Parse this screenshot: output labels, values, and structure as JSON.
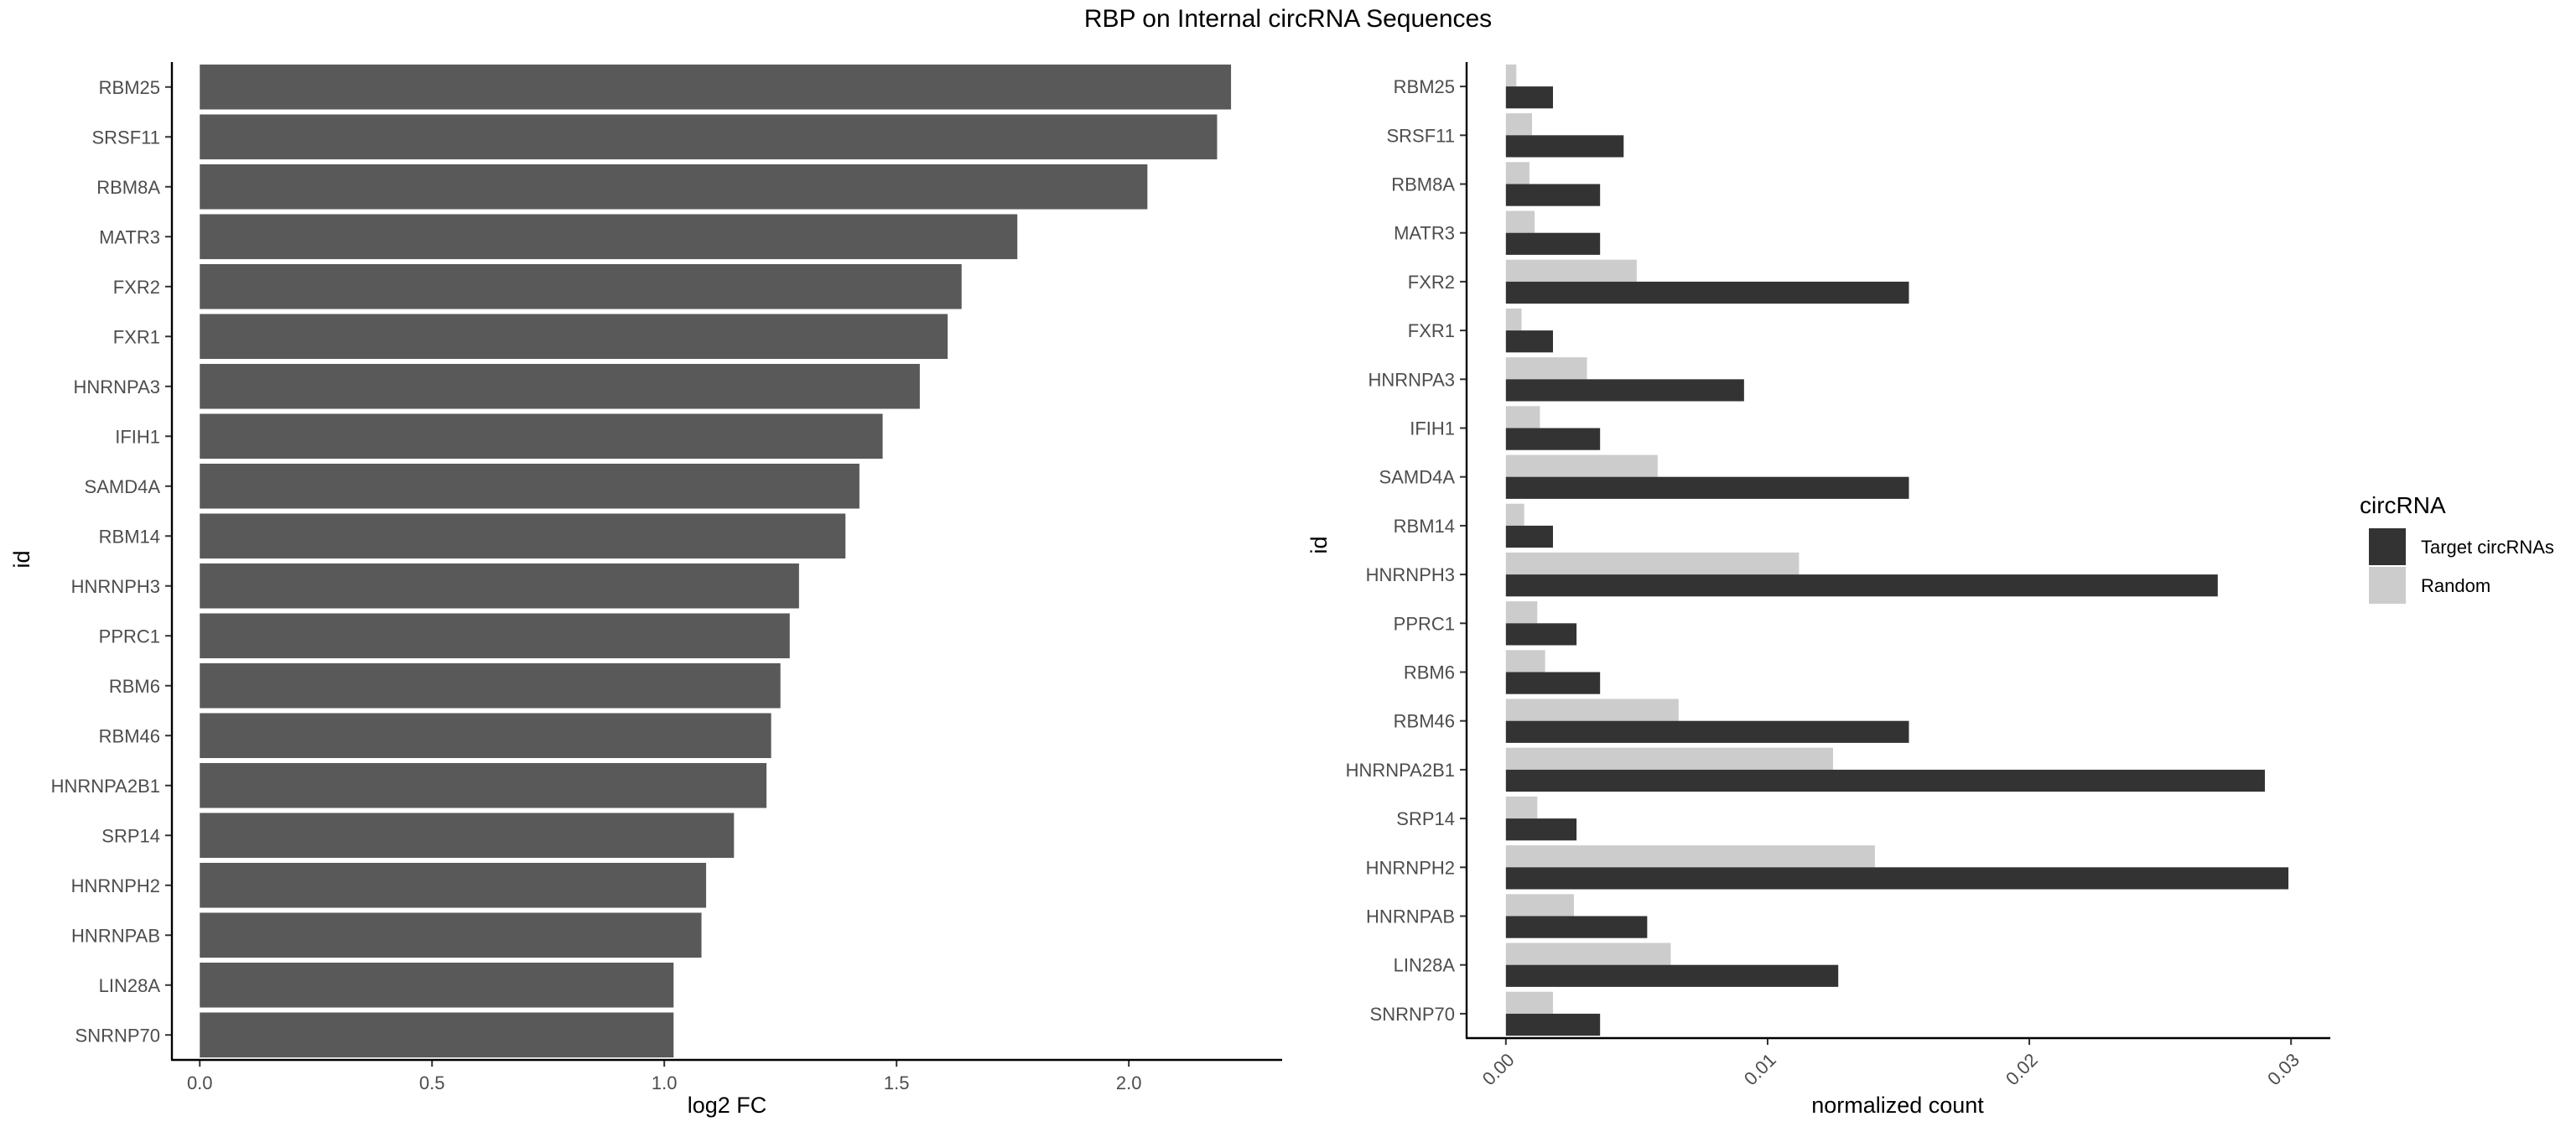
{
  "figure": {
    "title": "RBP on Internal circRNA Sequences"
  },
  "chart_data": [
    {
      "type": "bar",
      "orientation": "horizontal",
      "xlabel": "log2 FC",
      "ylabel": "id",
      "xlim": [
        -0.06,
        2.33
      ],
      "xticks": [
        0.0,
        0.5,
        1.0,
        1.5,
        2.0
      ],
      "xtick_labels": [
        "0.0",
        "0.5",
        "1.0",
        "1.5",
        "2.0"
      ],
      "grid": false,
      "bar_color": "#595959",
      "categories": [
        "RBM25",
        "SRSF11",
        "RBM8A",
        "MATR3",
        "FXR2",
        "FXR1",
        "HNRNPA3",
        "IFIH1",
        "SAMD4A",
        "RBM14",
        "HNRNPH3",
        "PPRC1",
        "RBM6",
        "RBM46",
        "HNRNPA2B1",
        "SRP14",
        "HNRNPH2",
        "HNRNPAB",
        "LIN28A",
        "SNRNP70"
      ],
      "values": [
        2.22,
        2.19,
        2.04,
        1.76,
        1.64,
        1.61,
        1.55,
        1.47,
        1.42,
        1.39,
        1.29,
        1.27,
        1.25,
        1.23,
        1.22,
        1.15,
        1.09,
        1.08,
        1.02,
        1.02
      ]
    },
    {
      "type": "bar",
      "orientation": "horizontal",
      "grouped": true,
      "xlabel": "normalized count",
      "ylabel": "id",
      "xlim": [
        -0.0015,
        0.0315
      ],
      "xticks": [
        0.0,
        0.01,
        0.02,
        0.03
      ],
      "xtick_labels": [
        "0.00",
        "0.01",
        "0.02",
        "0.03"
      ],
      "xtick_rotation": 45,
      "grid": false,
      "legend": {
        "title": "circRNA",
        "placement": "right"
      },
      "categories": [
        "RBM25",
        "SRSF11",
        "RBM8A",
        "MATR3",
        "FXR2",
        "FXR1",
        "HNRNPA3",
        "IFIH1",
        "SAMD4A",
        "RBM14",
        "HNRNPH3",
        "PPRC1",
        "RBM6",
        "RBM46",
        "HNRNPA2B1",
        "SRP14",
        "HNRNPH2",
        "HNRNPAB",
        "LIN28A",
        "SNRNP70"
      ],
      "series": [
        {
          "name": "Target circRNAs",
          "color": "#333333",
          "values": [
            0.0018,
            0.0045,
            0.0036,
            0.0036,
            0.0154,
            0.0018,
            0.0091,
            0.0036,
            0.0154,
            0.0018,
            0.0272,
            0.0027,
            0.0036,
            0.0154,
            0.029,
            0.0027,
            0.0299,
            0.0054,
            0.0127,
            0.0036
          ]
        },
        {
          "name": "Random",
          "color": "#cccccc",
          "values": [
            0.0004,
            0.001,
            0.0009,
            0.0011,
            0.005,
            0.0006,
            0.0031,
            0.0013,
            0.0058,
            0.0007,
            0.0112,
            0.0012,
            0.0015,
            0.0066,
            0.0125,
            0.0012,
            0.0141,
            0.0026,
            0.0063,
            0.0018
          ]
        }
      ]
    }
  ]
}
